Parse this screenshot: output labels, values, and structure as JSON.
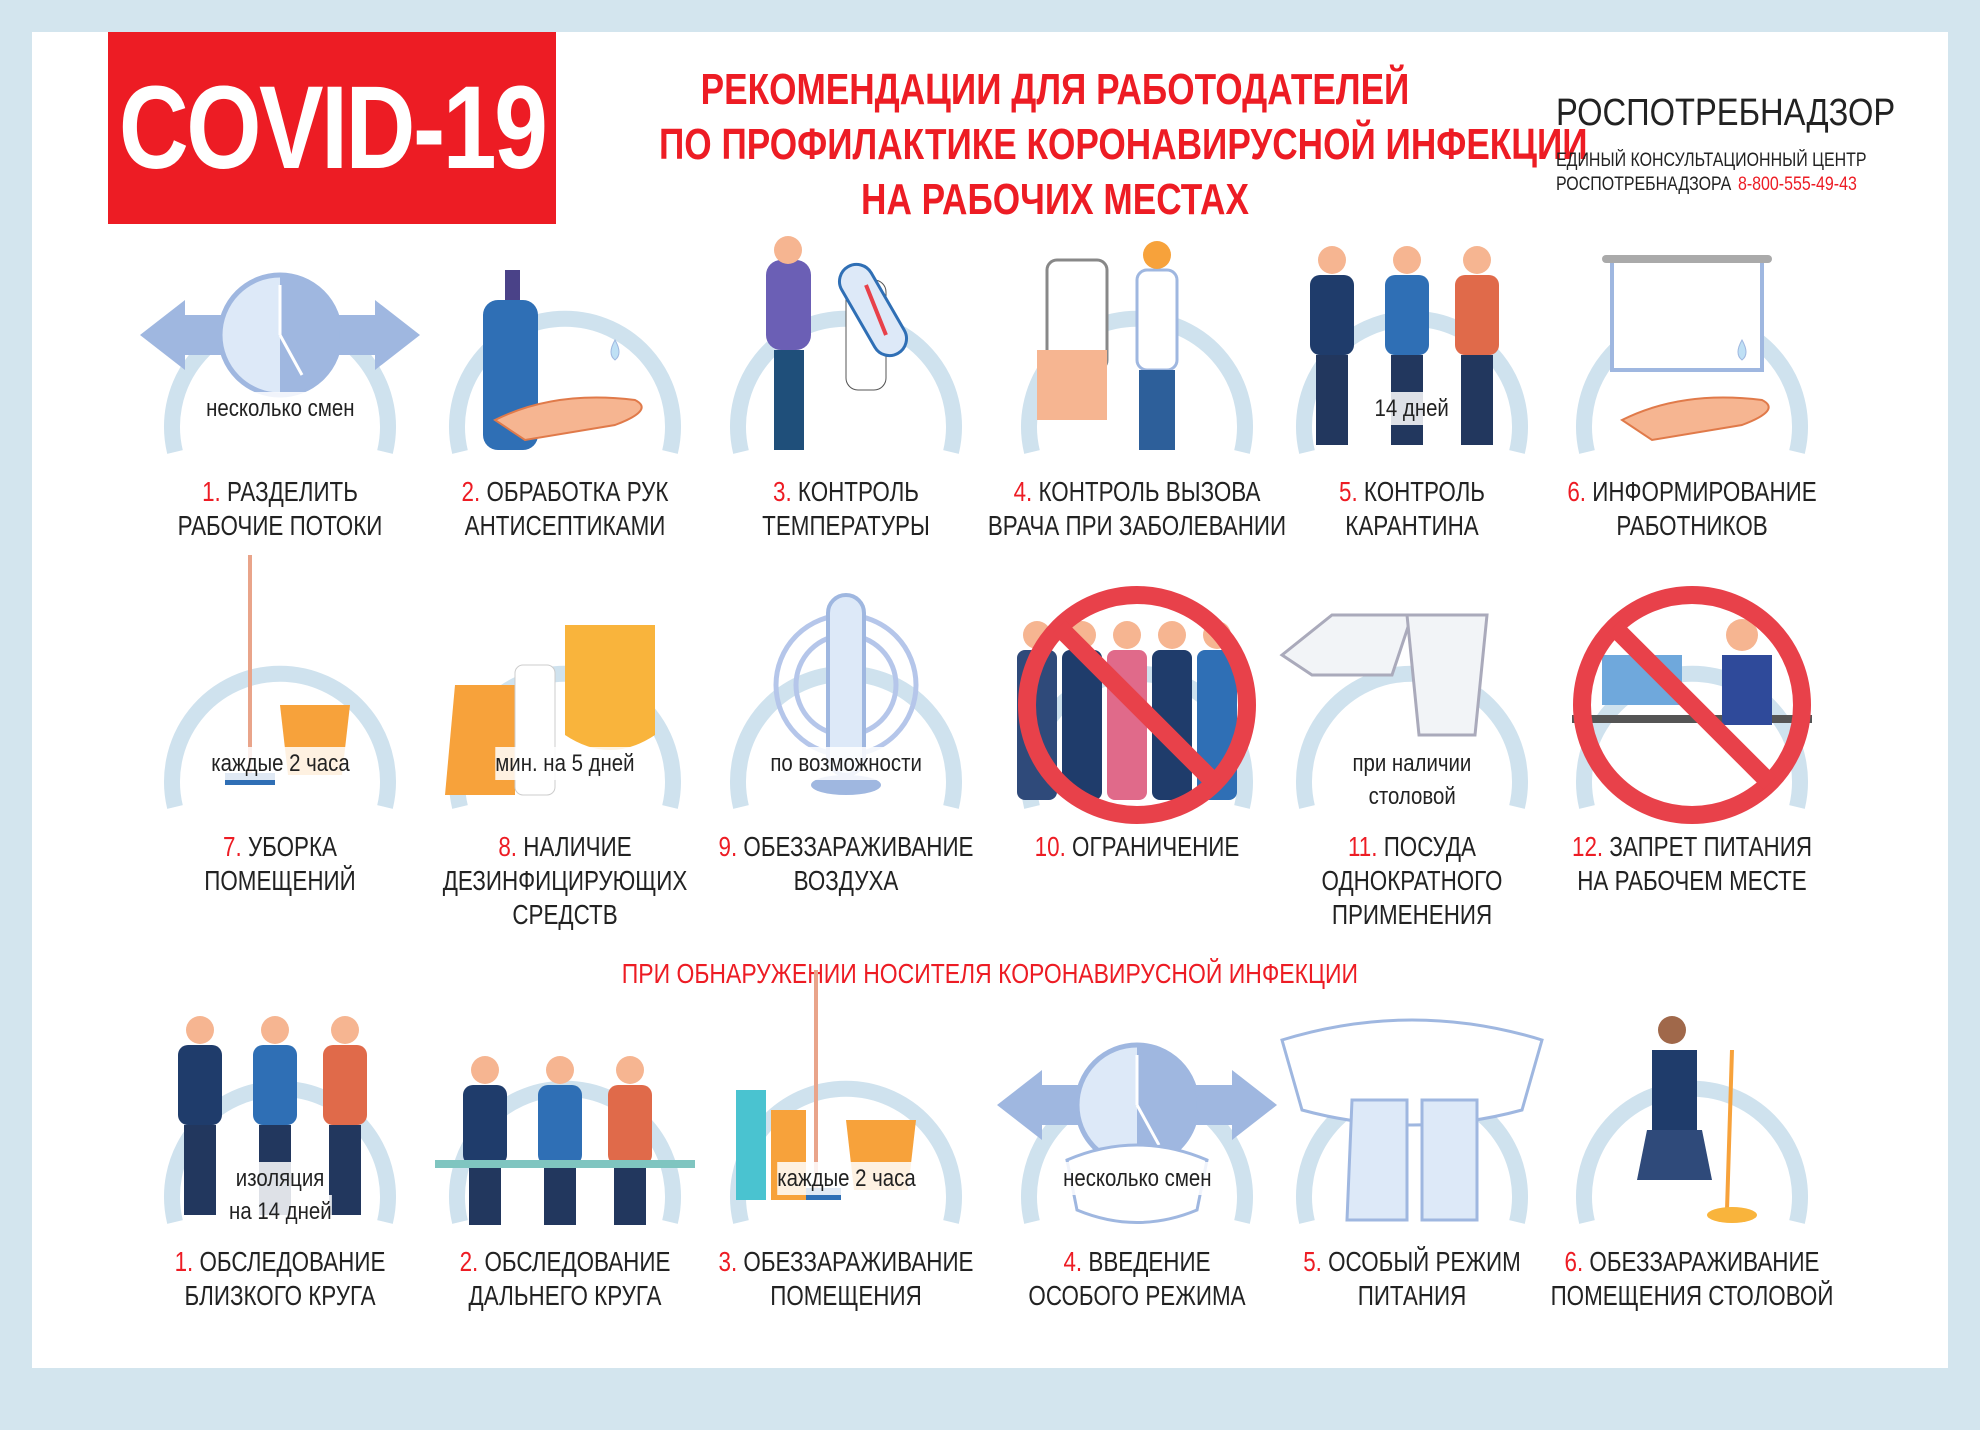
{
  "header": {
    "badge": "COVID-19",
    "title_lines": [
      "РЕКОМЕНДАЦИИ ДЛЯ РАБОТОДАТЕЛЕЙ",
      "ПО ПРОФИЛАКТИКЕ КОРОНАВИРУСНОЙ ИНФЕКЦИИ",
      "НА РАБОЧИХ МЕСТАХ"
    ],
    "org_name": "РОСПОТРЕБНАДЗОР",
    "org_sub_line1": "ЕДИНЫЙ КОНСУЛЬТАЦИОННЫЙ ЦЕНТР",
    "org_sub_line2": "РОСПОТРЕБНАДЗОРА",
    "org_phone": "8-800-555-49-43"
  },
  "colors": {
    "accent": "#ed1c24",
    "ring": "#cfe2ee",
    "background": "#d3e5ee"
  },
  "section_heading": "ПРИ ОБНАРУЖЕНИИ НОСИТЕЛЯ КОРОНАВИРУСНОЙ ИНФЕКЦИИ",
  "rows": [
    [
      {
        "num": "1.",
        "lines": [
          "РАЗДЕЛИТЬ",
          "РАБОЧИЕ ПОТОКИ"
        ],
        "caption": [
          "несколько смен"
        ],
        "icon": "clock-arrows-icon"
      },
      {
        "num": "2.",
        "lines": [
          "ОБРАБОТКА РУК",
          "АНТИСЕПТИКАМИ"
        ],
        "caption": [],
        "icon": "sanitizer-hand-icon"
      },
      {
        "num": "3.",
        "lines": [
          "КОНТРОЛЬ",
          "ТЕМПЕРАТУРЫ"
        ],
        "caption": [],
        "icon": "thermometer-icon"
      },
      {
        "num": "4.",
        "lines": [
          "КОНТРОЛЬ ВЫЗОВА",
          "ВРАЧА ПРИ ЗАБОЛЕВАНИИ"
        ],
        "caption": [],
        "icon": "phone-doctor-icon"
      },
      {
        "num": "5.",
        "lines": [
          "КОНТРОЛЬ",
          "КАРАНТИНА"
        ],
        "caption": [
          "14 дней"
        ],
        "icon": "people-icon"
      },
      {
        "num": "6.",
        "lines": [
          "ИНФОРМИРОВАНИЕ",
          "РАБОТНИКОВ"
        ],
        "caption": [],
        "icon": "poster-hand-icon"
      }
    ],
    [
      {
        "num": "7.",
        "lines": [
          "УБОРКА",
          "ПОМЕЩЕНИЙ"
        ],
        "caption": [
          "каждые 2 часа"
        ],
        "icon": "mop-bucket-icon"
      },
      {
        "num": "8.",
        "lines": [
          "НАЛИЧИЕ",
          "ДЕЗИНФИЦИРУЮЩИХ",
          "СРЕДСТВ"
        ],
        "caption": [
          "мин. на 5 дней"
        ],
        "icon": "disinfectant-gloves-icon"
      },
      {
        "num": "9.",
        "lines": [
          "ОБЕЗЗАРАЖИВАНИЕ",
          "ВОЗДУХА"
        ],
        "caption": [
          "по возможности"
        ],
        "icon": "air-purifier-icon"
      },
      {
        "num": "10.",
        "lines": [
          "ОГРАНИЧЕНИЕ"
        ],
        "caption": [],
        "icon": "no-crowd-icon"
      },
      {
        "num": "11.",
        "lines": [
          "ПОСУДА",
          "ОДНОКРАТНОГО",
          "ПРИМЕНЕНИЯ"
        ],
        "caption": [
          "при наличии",
          "столовой"
        ],
        "icon": "disposable-cups-icon"
      },
      {
        "num": "12.",
        "lines": [
          "ЗАПРЕТ ПИТАНИЯ",
          "НА РАБОЧЕМ МЕСТЕ"
        ],
        "caption": [],
        "icon": "no-eating-desk-icon"
      }
    ],
    [
      {
        "num": "1.",
        "lines": [
          "ОБСЛЕДОВАНИЕ",
          "БЛИЗКОГО КРУГА"
        ],
        "caption": [
          "изоляция",
          "на 14 дней"
        ],
        "icon": "family-icon"
      },
      {
        "num": "2.",
        "lines": [
          "ОБСЛЕДОВАНИЕ",
          "ДАЛЬНЕГО КРУГА"
        ],
        "caption": [],
        "icon": "meeting-icon"
      },
      {
        "num": "3.",
        "lines": [
          "ОБЕЗЗАРАЖИВАНИЕ",
          "ПОМЕЩЕНИЯ"
        ],
        "caption": [
          "каждые 2 часа"
        ],
        "icon": "cleaning-supplies-icon"
      },
      {
        "num": "4.",
        "lines": [
          "ВВЕДЕНИЕ",
          "ОСОБОГО РЕЖИМА"
        ],
        "caption": [
          "несколько смен"
        ],
        "icon": "clock-mask-icon"
      },
      {
        "num": "5.",
        "lines": [
          "ОСОБЫЙ РЕЖИМ",
          "ПИТАНИЯ"
        ],
        "caption": [],
        "icon": "mask-gloves-icon"
      },
      {
        "num": "6.",
        "lines": [
          "ОБЕЗЗАРАЖИВАНИЕ",
          "ПОМЕЩЕНИЯ СТОЛОВОЙ"
        ],
        "caption": [],
        "icon": "cleaner-icon"
      }
    ]
  ]
}
